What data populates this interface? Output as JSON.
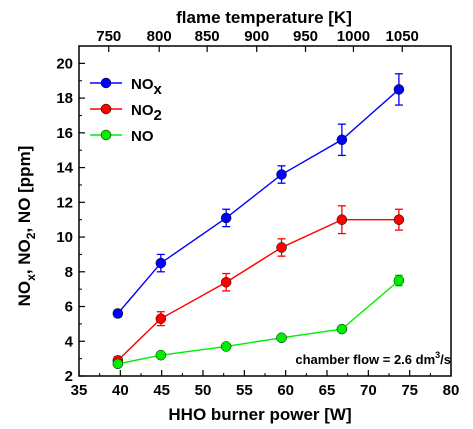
{
  "chart_data": {
    "type": "line",
    "xlabel": "HHO burner power [W]",
    "top_xlabel": "flame temperature [K]",
    "ylabel": {
      "base": "NO",
      "sub": "x",
      "rest": ", NO",
      "sub2": "2",
      "rest2": ", NO [ppm]"
    },
    "xlim": [
      35,
      80
    ],
    "ylim": [
      2,
      21
    ],
    "x_ticks": [
      35,
      40,
      45,
      50,
      55,
      60,
      65,
      70,
      75,
      80
    ],
    "y_ticks": [
      2,
      4,
      6,
      8,
      10,
      12,
      14,
      16,
      18,
      20
    ],
    "top_ticks": [
      {
        "label": "750",
        "x": 38.6
      },
      {
        "label": "800",
        "x": 44.7
      },
      {
        "label": "850",
        "x": 50.5
      },
      {
        "label": "900",
        "x": 56.5
      },
      {
        "label": "950",
        "x": 62.4
      },
      {
        "label": "1000",
        "x": 68.2
      },
      {
        "label": "1050",
        "x": 74.1
      }
    ],
    "x": [
      39.7,
      44.9,
      52.8,
      59.5,
      66.8,
      73.7
    ],
    "series": [
      {
        "name": "NO",
        "name_sub": "x",
        "color": "#0000ff",
        "values": [
          5.6,
          8.5,
          11.1,
          13.6,
          15.6,
          18.5
        ],
        "errors": [
          0.2,
          0.5,
          0.5,
          0.5,
          0.9,
          0.9
        ]
      },
      {
        "name": "NO",
        "name_sub": "2",
        "color": "#ff0000",
        "values": [
          2.9,
          5.3,
          7.4,
          9.4,
          11.0,
          11.0
        ],
        "errors": [
          0.2,
          0.4,
          0.5,
          0.5,
          0.8,
          0.6
        ]
      },
      {
        "name": "NO",
        "name_sub": "",
        "color": "#00ee00",
        "values": [
          2.7,
          3.2,
          3.7,
          4.2,
          4.7,
          7.5
        ],
        "errors": [
          0.1,
          0.1,
          0.1,
          0.1,
          0.1,
          0.3
        ]
      }
    ],
    "annotation": {
      "pre": "chamber flow = 2.6 dm",
      "sup": "3",
      "post": "/s"
    },
    "legend_position": "top-left",
    "grid": false
  }
}
